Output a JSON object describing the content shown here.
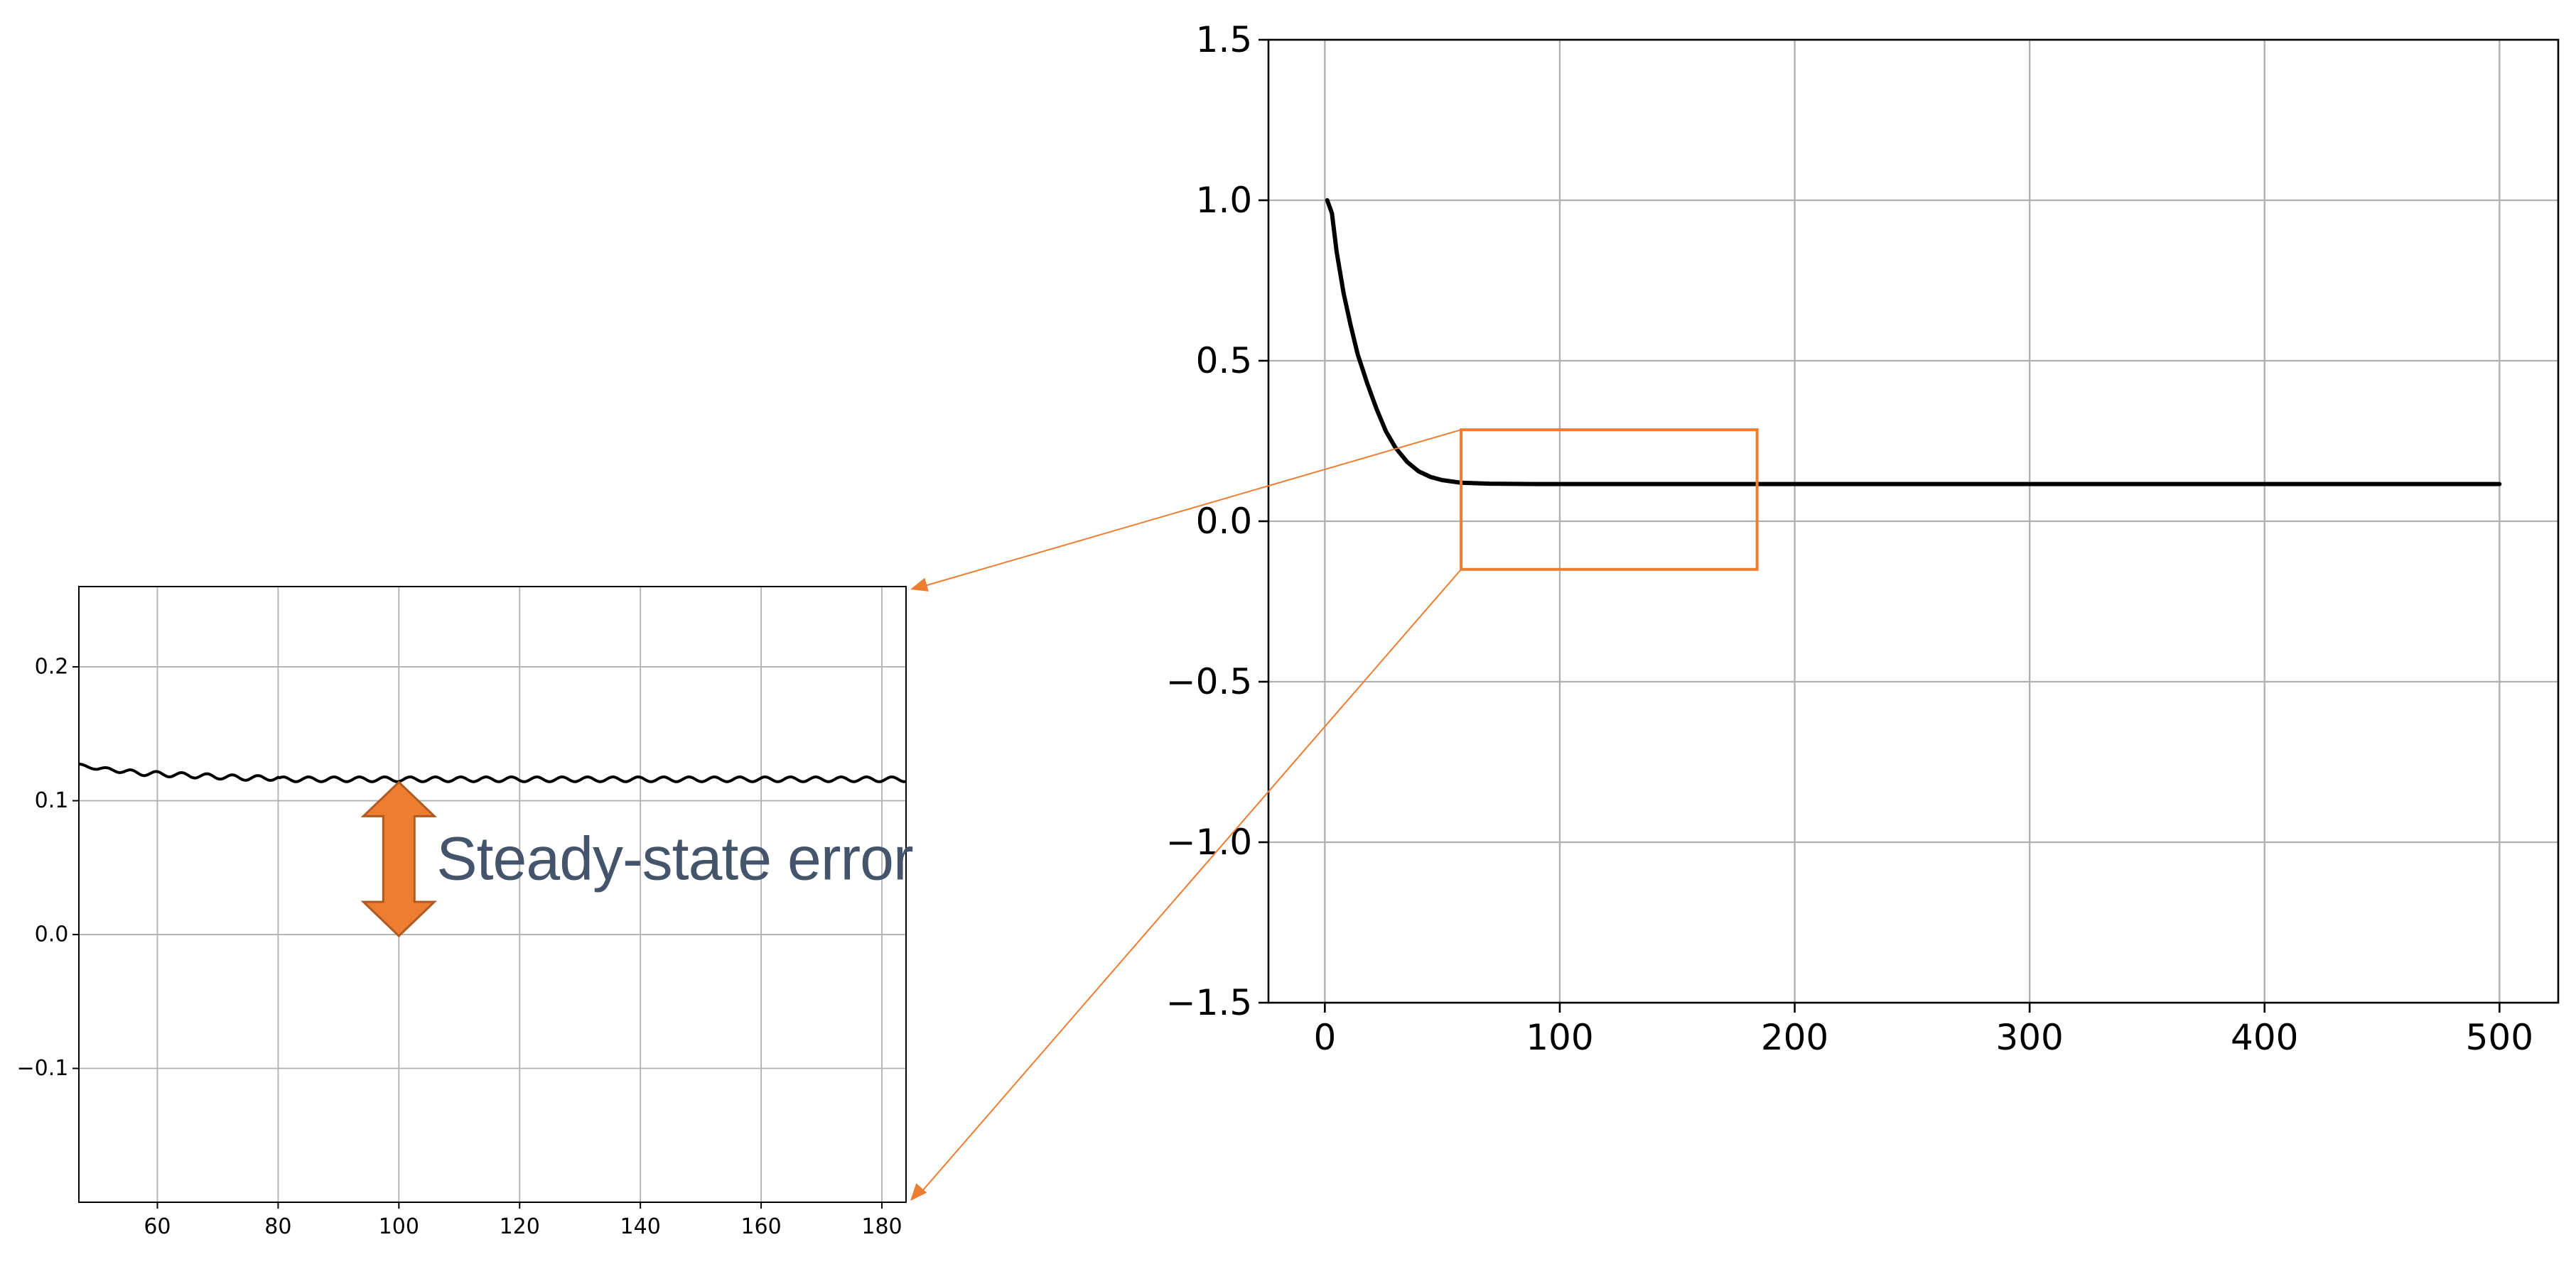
{
  "chart_data": [
    {
      "id": "main",
      "type": "line",
      "title": "",
      "xlabel": "",
      "ylabel": "",
      "xlim": [
        -24,
        525
      ],
      "ylim": [
        -1.5,
        1.5
      ],
      "xticks": [
        0,
        100,
        200,
        300,
        400,
        500
      ],
      "xtick_labels": [
        "0",
        "100",
        "200",
        "300",
        "400",
        "500"
      ],
      "yticks": [
        -1.5,
        -1.0,
        -0.5,
        0.0,
        0.5,
        1.0,
        1.5
      ],
      "ytick_labels": [
        "−1.5",
        "−1.0",
        "−0.5",
        "0.0",
        "0.5",
        "1.0",
        "1.5"
      ],
      "grid": true,
      "series_color": "#000000",
      "series": [
        {
          "x": [
            1,
            3,
            5,
            8,
            11,
            14,
            18,
            22,
            26,
            30,
            35,
            40,
            45,
            50,
            58,
            70,
            90,
            120,
            160,
            200,
            300,
            400,
            500
          ],
          "values": [
            1.0,
            0.96,
            0.84,
            0.71,
            0.61,
            0.52,
            0.43,
            0.35,
            0.28,
            0.23,
            0.185,
            0.155,
            0.138,
            0.128,
            0.12,
            0.117,
            0.116,
            0.116,
            0.116,
            0.116,
            0.116,
            0.116,
            0.116
          ]
        }
      ],
      "zoom_box": {
        "x": [
          58,
          184
        ],
        "y": [
          -0.15,
          0.285
        ],
        "color": "#ed7d31"
      }
    },
    {
      "id": "inset",
      "type": "line",
      "title": "",
      "xlabel": "",
      "ylabel": "",
      "xlim": [
        47,
        184
      ],
      "ylim": [
        -0.2,
        0.26
      ],
      "xticks": [
        60,
        80,
        100,
        120,
        140,
        160,
        180
      ],
      "xtick_labels": [
        "60",
        "80",
        "100",
        "120",
        "140",
        "160",
        "180"
      ],
      "yticks": [
        -0.1,
        0.0,
        0.1,
        0.2
      ],
      "ytick_labels": [
        "−0.1",
        "0.0",
        "0.1",
        "0.2"
      ],
      "grid": true,
      "series_color": "#000000",
      "series": [
        {
          "x": [
            47,
            50,
            53,
            56,
            60,
            65,
            70,
            75,
            80
          ],
          "values": [
            0.127,
            0.124,
            0.123,
            0.121,
            0.12,
            0.119,
            0.118,
            0.117,
            0.117
          ],
          "steady_value": 0.116,
          "ripple_amplitude": 0.0018,
          "ripple_period": 4.2,
          "x_end": 184
        }
      ],
      "annotation": {
        "text": "Steady-state error",
        "arrow_x": 100,
        "arrow_from": 0.0,
        "arrow_to": 0.116,
        "arrow_color": "#ed7d31",
        "arrow_edge_color": "#ae5a21",
        "text_color": "#44546a"
      }
    }
  ]
}
